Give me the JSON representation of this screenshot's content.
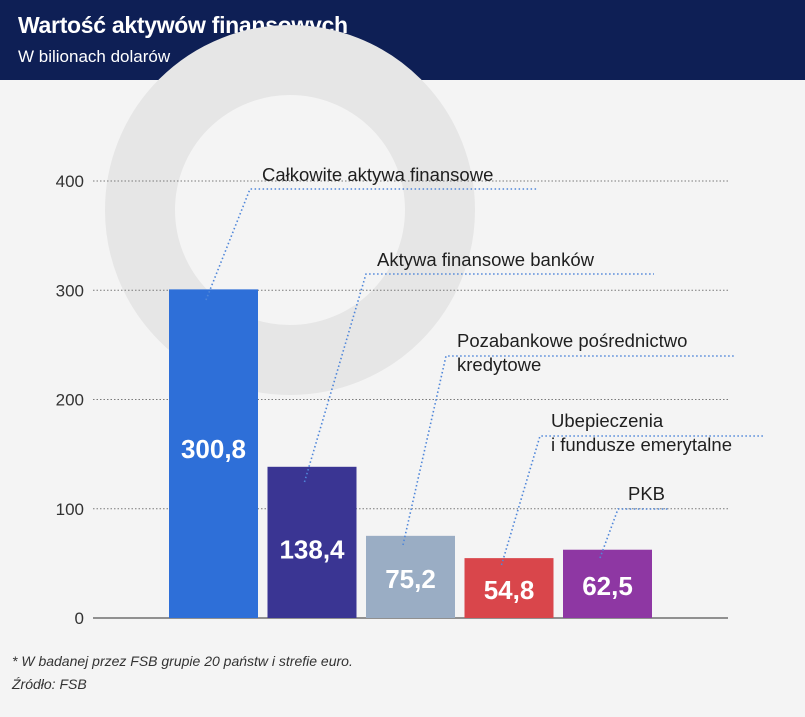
{
  "header": {
    "title": "Wartość aktywów finansowych",
    "subtitle": "W bilionach dolarów"
  },
  "chart_data": {
    "type": "bar",
    "title": "Wartość aktywów finansowych",
    "subtitle": "W bilionach dolarów",
    "ylim": [
      0,
      400
    ],
    "yticks": [
      0,
      100,
      200,
      300,
      400
    ],
    "grid": true,
    "categories": [
      "Całkowite aktywa finansowe",
      "Aktywa finansowe banków",
      "Pozabankowe pośrednictwo kredytowe",
      "Ubepieczenia i fundusze emerytalne",
      "PKB"
    ],
    "label_lines": [
      [
        "Całkowite aktywa finansowe"
      ],
      [
        "Aktywa finansowe banków"
      ],
      [
        "Pozabankowe pośrednictwo",
        "kredytowe"
      ],
      [
        "Ubepieczenia",
        "i fundusze emerytalne"
      ],
      [
        "PKB"
      ]
    ],
    "values": [
      300.8,
      138.4,
      75.2,
      54.8,
      62.5
    ],
    "value_labels": [
      "300,8",
      "138,4",
      "75,2",
      "54,8",
      "62,5"
    ],
    "colors": [
      "#2e6fd8",
      "#3a3593",
      "#9aadc4",
      "#d9464b",
      "#8e37a3"
    ]
  },
  "footer": {
    "note": "* W badanej przez FSB grupie 20 państw i strefie euro.",
    "source": "Źródło: FSB"
  }
}
